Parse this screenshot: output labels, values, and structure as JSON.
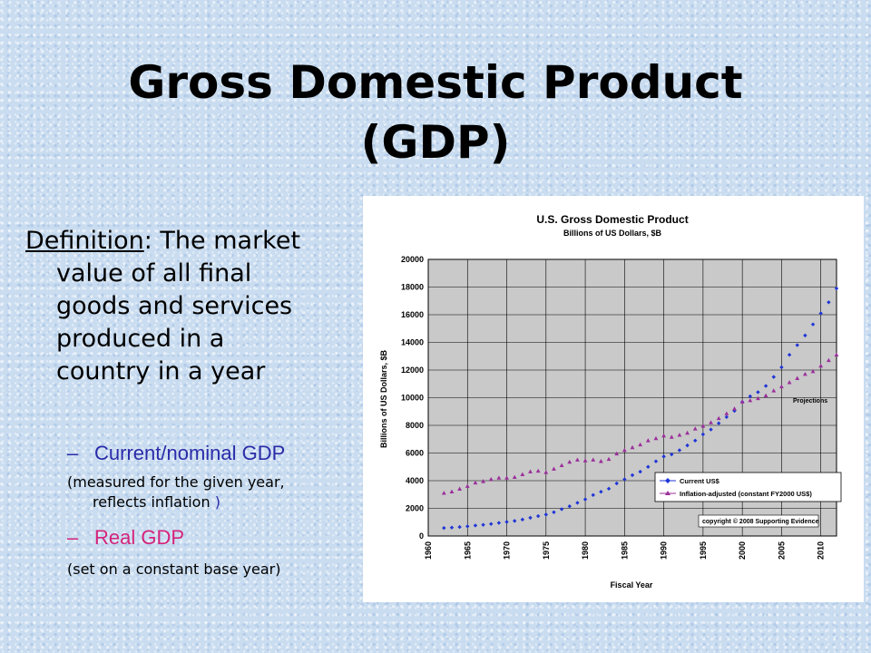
{
  "slide": {
    "title_line1": "Gross Domestic Product",
    "title_line2": "(GDP)",
    "definition_term": "Definition",
    "definition_rest_line1": ": The market",
    "definition_line2": "value of all final",
    "definition_line3": "goods and services",
    "definition_line4": "produced in a",
    "definition_line5": "country in a year",
    "bullet_dash": "–",
    "bullet1": "Current/nominal GDP",
    "note1_line1": "(measured for the given year,",
    "note1_line2": "reflects inflation",
    "note1_paren": ")",
    "bullet2": "Real GDP",
    "note2": "(set on a constant base year)"
  },
  "colors": {
    "nominal_text": "#2b2ba8",
    "real_text": "#d4237a",
    "current_series": "#1f35d6",
    "adjusted_series": "#9b2f9b",
    "plot_bg": "#c9c9c9"
  },
  "chart_data": {
    "type": "scatter",
    "title": "U.S. Gross Domestic Product",
    "subtitle": "Billions of US Dollars, $B",
    "xlabel": "Fiscal Year",
    "ylabel": "Billions of US Dollars, $B",
    "xlim": [
      1960,
      2012
    ],
    "ylim": [
      0,
      20000
    ],
    "x_ticks": [
      "1960",
      "1965",
      "1970",
      "1975",
      "1980",
      "1985",
      "1990",
      "1995",
      "2000",
      "2005",
      "2010"
    ],
    "y_ticks": [
      "0",
      "2000",
      "4000",
      "6000",
      "8000",
      "10000",
      "12000",
      "14000",
      "16000",
      "18000",
      "20000"
    ],
    "grid": true,
    "legend_position": "bottom-right",
    "annotation": "Projections",
    "copyright": "copyright © 2008 Supporting Evidence",
    "series": [
      {
        "name": "Current US$",
        "marker": "diamond",
        "color": "#1f35d6",
        "x": [
          1962,
          1963,
          1964,
          1965,
          1966,
          1967,
          1968,
          1969,
          1970,
          1971,
          1972,
          1973,
          1974,
          1975,
          1976,
          1977,
          1978,
          1979,
          1980,
          1981,
          1982,
          1983,
          1984,
          1985,
          1986,
          1987,
          1988,
          1989,
          1990,
          1991,
          1992,
          1993,
          1994,
          1995,
          1996,
          1997,
          1998,
          1999,
          2000,
          2001,
          2002,
          2003,
          2004,
          2005,
          2006,
          2007,
          2008,
          2009,
          2010,
          2011,
          2012
        ],
        "y": [
          580,
          610,
          650,
          700,
          760,
          810,
          870,
          950,
          1020,
          1090,
          1190,
          1320,
          1440,
          1550,
          1720,
          1940,
          2150,
          2400,
          2650,
          2960,
          3200,
          3420,
          3800,
          4100,
          4400,
          4650,
          5000,
          5400,
          5750,
          5900,
          6200,
          6550,
          6900,
          7350,
          7700,
          8150,
          8600,
          9050,
          9700,
          10100,
          10400,
          10850,
          11500,
          12200,
          13100,
          13800,
          14500,
          15300,
          16100,
          16900,
          17900
        ]
      },
      {
        "name": "Inflation-adjusted (constant FY2000 US$)",
        "marker": "triangle",
        "color": "#9b2f9b",
        "x": [
          1962,
          1963,
          1964,
          1965,
          1966,
          1967,
          1968,
          1969,
          1970,
          1971,
          1972,
          1973,
          1974,
          1975,
          1976,
          1977,
          1978,
          1979,
          1980,
          1981,
          1982,
          1983,
          1984,
          1985,
          1986,
          1987,
          1988,
          1989,
          1990,
          1991,
          1992,
          1993,
          1994,
          1995,
          1996,
          1997,
          1998,
          1999,
          2000,
          2001,
          2002,
          2003,
          2004,
          2005,
          2006,
          2007,
          2008,
          2009,
          2010,
          2011,
          2012
        ],
        "y": [
          3100,
          3200,
          3400,
          3600,
          3850,
          3950,
          4100,
          4200,
          4200,
          4250,
          4450,
          4650,
          4700,
          4600,
          4850,
          5100,
          5350,
          5500,
          5450,
          5500,
          5400,
          5550,
          5950,
          6200,
          6400,
          6600,
          6900,
          7050,
          7250,
          7150,
          7300,
          7450,
          7750,
          7950,
          8200,
          8500,
          8850,
          9200,
          9700,
          9800,
          9950,
          10150,
          10500,
          10800,
          11100,
          11400,
          11700,
          11900,
          12300,
          12700,
          13100
        ]
      }
    ]
  }
}
